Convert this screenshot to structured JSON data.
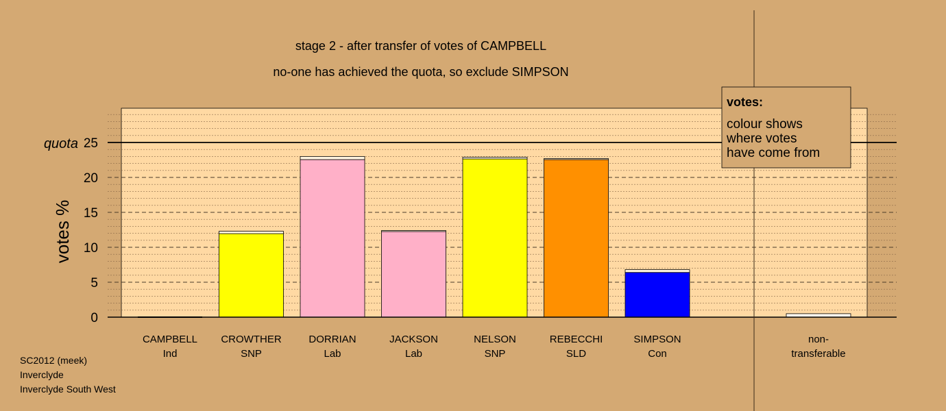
{
  "chart_data": {
    "type": "bar",
    "title": "stage 2 - after transfer of votes of CAMPBELL",
    "subtitle": "no-one has achieved the quota, so exclude SIMPSON",
    "ylabel": "votes %",
    "quota_label": "quota",
    "quota": 25,
    "ylim": [
      0,
      30
    ],
    "yticks": [
      0,
      5,
      10,
      15,
      20,
      25
    ],
    "grid": "dashed horizontal lines",
    "categories": [
      {
        "name": "CAMPBELL",
        "party": "Ind",
        "value": 0,
        "color": "#000000"
      },
      {
        "name": "CROWTHER",
        "party": "SNP",
        "value": 12.3,
        "color": "#ffff00",
        "transfer": 0.35
      },
      {
        "name": "DORRIAN",
        "party": "Lab",
        "value": 23.0,
        "color": "#ffb0c8",
        "transfer": 0.45
      },
      {
        "name": "JACKSON",
        "party": "Lab",
        "value": 12.4,
        "color": "#ffb0c8",
        "transfer": 0.15
      },
      {
        "name": "NELSON",
        "party": "SNP",
        "value": 22.9,
        "color": "#ffff00",
        "transfer": 0.25
      },
      {
        "name": "REBECCHI",
        "party": "SLD",
        "value": 22.7,
        "color": "#ff9000",
        "transfer": 0.15
      },
      {
        "name": "SIMPSON",
        "party": "Con",
        "value": 6.8,
        "color": "#0000ff",
        "transfer": 0.4
      }
    ],
    "nontransferable": {
      "label_line1": "non-",
      "label_line2": "transferable",
      "value": 0.5
    },
    "legend": {
      "title": "votes:",
      "lines": [
        "colour shows",
        "where votes",
        "have come from"
      ],
      "position": "top-right"
    }
  },
  "meta": {
    "line1": "SC2012 (meek)",
    "line2": "Inverclyde",
    "line3": "Inverclyde South West"
  }
}
